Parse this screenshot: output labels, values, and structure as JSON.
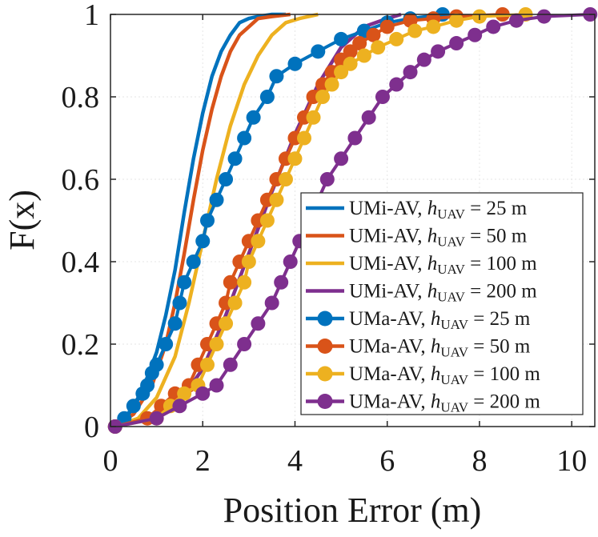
{
  "chart_data": {
    "type": "line",
    "title": "",
    "xlabel": "Position Error (m)",
    "ylabel": "F(x)",
    "xlim": [
      0,
      10.5
    ],
    "ylim": [
      0,
      1
    ],
    "xticks": [
      0,
      2,
      4,
      6,
      8,
      10
    ],
    "yticks": [
      0,
      0.2,
      0.4,
      0.6,
      0.8,
      1
    ],
    "xtick_labels": [
      "0",
      "2",
      "4",
      "6",
      "8",
      "10"
    ],
    "ytick_labels": [
      "0",
      "0.2",
      "0.4",
      "0.6",
      "0.8",
      "1"
    ],
    "grid": true,
    "legend_position": "bottom-right",
    "series": [
      {
        "name": "UMi-AV, h_UAV = 25 m",
        "legend": {
          "prefix": "UMi-AV, ",
          "var": "h",
          "sub": "UAV",
          "eq": " = ",
          "num": "25",
          "unit": " m"
        },
        "color": "#0072BD",
        "marker": "none",
        "x": [
          0.1,
          0.4,
          0.7,
          1.0,
          1.2,
          1.4,
          1.6,
          1.8,
          2.0,
          2.2,
          2.4,
          2.6,
          2.8,
          3.0,
          3.2,
          3.5,
          3.8
        ],
        "y": [
          0.0,
          0.03,
          0.09,
          0.18,
          0.27,
          0.38,
          0.52,
          0.65,
          0.76,
          0.85,
          0.91,
          0.95,
          0.98,
          0.99,
          0.995,
          1.0,
          1.0
        ]
      },
      {
        "name": "UMi-AV, h_UAV = 50 m",
        "legend": {
          "prefix": "UMi-AV, ",
          "var": "h",
          "sub": "UAV",
          "eq": " = ",
          "num": "50",
          "unit": " m"
        },
        "color": "#D95319",
        "marker": "none",
        "x": [
          0.1,
          0.5,
          0.9,
          1.2,
          1.4,
          1.6,
          1.8,
          2.0,
          2.2,
          2.4,
          2.6,
          2.8,
          3.0,
          3.2,
          3.5,
          3.9
        ],
        "y": [
          0.0,
          0.03,
          0.1,
          0.2,
          0.3,
          0.42,
          0.55,
          0.67,
          0.77,
          0.85,
          0.91,
          0.95,
          0.97,
          0.99,
          0.995,
          1.0
        ]
      },
      {
        "name": "UMi-AV, h_UAV = 100 m",
        "legend": {
          "prefix": "UMi-AV, ",
          "var": "h",
          "sub": "UAV",
          "eq": " = ",
          "num": "100",
          "unit": " m"
        },
        "color": "#EDB120",
        "marker": "none",
        "x": [
          0.1,
          0.6,
          1.0,
          1.4,
          1.7,
          2.0,
          2.3,
          2.6,
          2.9,
          3.2,
          3.5,
          3.8,
          4.1,
          4.5
        ],
        "y": [
          0.0,
          0.02,
          0.07,
          0.17,
          0.3,
          0.45,
          0.6,
          0.73,
          0.83,
          0.9,
          0.95,
          0.98,
          0.99,
          1.0
        ]
      },
      {
        "name": "UMi-AV, h_UAV = 200 m",
        "legend": {
          "prefix": "UMi-AV, ",
          "var": "h",
          "sub": "UAV",
          "eq": " = ",
          "num": "200",
          "unit": " m"
        },
        "color": "#7E2F8E",
        "marker": "none",
        "x": [
          0.1,
          1.0,
          1.5,
          2.0,
          2.5,
          3.0,
          3.5,
          4.0,
          4.5,
          5.0,
          5.5,
          6.0,
          6.3
        ],
        "y": [
          0.0,
          0.02,
          0.06,
          0.14,
          0.27,
          0.42,
          0.57,
          0.71,
          0.83,
          0.92,
          0.97,
          0.99,
          1.0
        ]
      },
      {
        "name": "UMa-AV, h_UAV = 25 m",
        "legend": {
          "prefix": "UMa-AV, ",
          "var": "h",
          "sub": "UAV",
          "eq": " = ",
          "num": "25",
          "unit": " m"
        },
        "color": "#0072BD",
        "marker": "circle",
        "x": [
          0.1,
          0.3,
          0.5,
          0.7,
          0.8,
          0.9,
          1.0,
          1.2,
          1.4,
          1.5,
          1.6,
          1.8,
          2.0,
          2.1,
          2.3,
          2.5,
          2.7,
          2.9,
          3.1,
          3.4,
          3.6,
          4.0,
          4.5,
          5.0,
          5.5,
          6.0,
          6.5,
          7.2
        ],
        "y": [
          0.0,
          0.02,
          0.05,
          0.08,
          0.1,
          0.13,
          0.15,
          0.2,
          0.25,
          0.3,
          0.35,
          0.4,
          0.45,
          0.5,
          0.55,
          0.6,
          0.65,
          0.7,
          0.75,
          0.8,
          0.85,
          0.88,
          0.91,
          0.94,
          0.96,
          0.98,
          0.99,
          1.0
        ]
      },
      {
        "name": "UMa-AV, h_UAV = 50 m",
        "legend": {
          "prefix": "UMa-AV, ",
          "var": "h",
          "sub": "UAV",
          "eq": " = ",
          "num": "50",
          "unit": " m"
        },
        "color": "#D95319",
        "marker": "circle",
        "x": [
          0.1,
          0.8,
          1.1,
          1.4,
          1.7,
          1.9,
          2.1,
          2.3,
          2.5,
          2.6,
          2.8,
          3.0,
          3.2,
          3.4,
          3.6,
          3.8,
          4.0,
          4.2,
          4.4,
          4.6,
          4.8,
          5.0,
          5.2,
          5.4,
          5.7,
          6.0,
          6.5,
          7.0,
          7.5,
          8.5
        ],
        "y": [
          0.0,
          0.02,
          0.05,
          0.08,
          0.1,
          0.15,
          0.2,
          0.25,
          0.3,
          0.35,
          0.4,
          0.45,
          0.5,
          0.55,
          0.6,
          0.65,
          0.7,
          0.75,
          0.8,
          0.83,
          0.86,
          0.89,
          0.91,
          0.93,
          0.95,
          0.97,
          0.985,
          0.99,
          0.995,
          1.0
        ]
      },
      {
        "name": "UMa-AV, h_UAV = 100 m",
        "legend": {
          "prefix": "UMa-AV, ",
          "var": "h",
          "sub": "UAV",
          "eq": " = ",
          "num": "100",
          "unit": " m"
        },
        "color": "#EDB120",
        "marker": "circle",
        "x": [
          0.1,
          1.0,
          1.3,
          1.6,
          1.9,
          2.1,
          2.3,
          2.5,
          2.7,
          2.9,
          3.0,
          3.2,
          3.4,
          3.6,
          3.8,
          4.0,
          4.2,
          4.4,
          4.6,
          4.8,
          5.0,
          5.2,
          5.5,
          5.8,
          6.2,
          6.6,
          7.0,
          7.5,
          8.0,
          9.0
        ],
        "y": [
          0.0,
          0.02,
          0.05,
          0.08,
          0.1,
          0.15,
          0.2,
          0.25,
          0.3,
          0.35,
          0.4,
          0.45,
          0.5,
          0.55,
          0.6,
          0.65,
          0.7,
          0.75,
          0.8,
          0.83,
          0.86,
          0.88,
          0.9,
          0.92,
          0.94,
          0.96,
          0.97,
          0.985,
          0.995,
          1.0
        ]
      },
      {
        "name": "UMa-AV, h_UAV = 200 m",
        "legend": {
          "prefix": "UMa-AV, ",
          "var": "h",
          "sub": "UAV",
          "eq": " = ",
          "num": "200",
          "unit": " m"
        },
        "color": "#7E2F8E",
        "marker": "circle",
        "x": [
          0.1,
          1.0,
          1.5,
          2.0,
          2.3,
          2.6,
          2.9,
          3.2,
          3.5,
          3.7,
          3.9,
          4.1,
          4.3,
          4.5,
          4.7,
          5.0,
          5.3,
          5.6,
          5.9,
          6.2,
          6.5,
          6.8,
          7.1,
          7.5,
          7.9,
          8.3,
          8.8,
          9.4,
          10.4
        ],
        "y": [
          0.0,
          0.02,
          0.05,
          0.08,
          0.1,
          0.15,
          0.2,
          0.25,
          0.3,
          0.35,
          0.4,
          0.45,
          0.5,
          0.55,
          0.6,
          0.65,
          0.7,
          0.75,
          0.8,
          0.83,
          0.86,
          0.89,
          0.91,
          0.93,
          0.95,
          0.97,
          0.985,
          0.995,
          1.0
        ]
      }
    ]
  }
}
